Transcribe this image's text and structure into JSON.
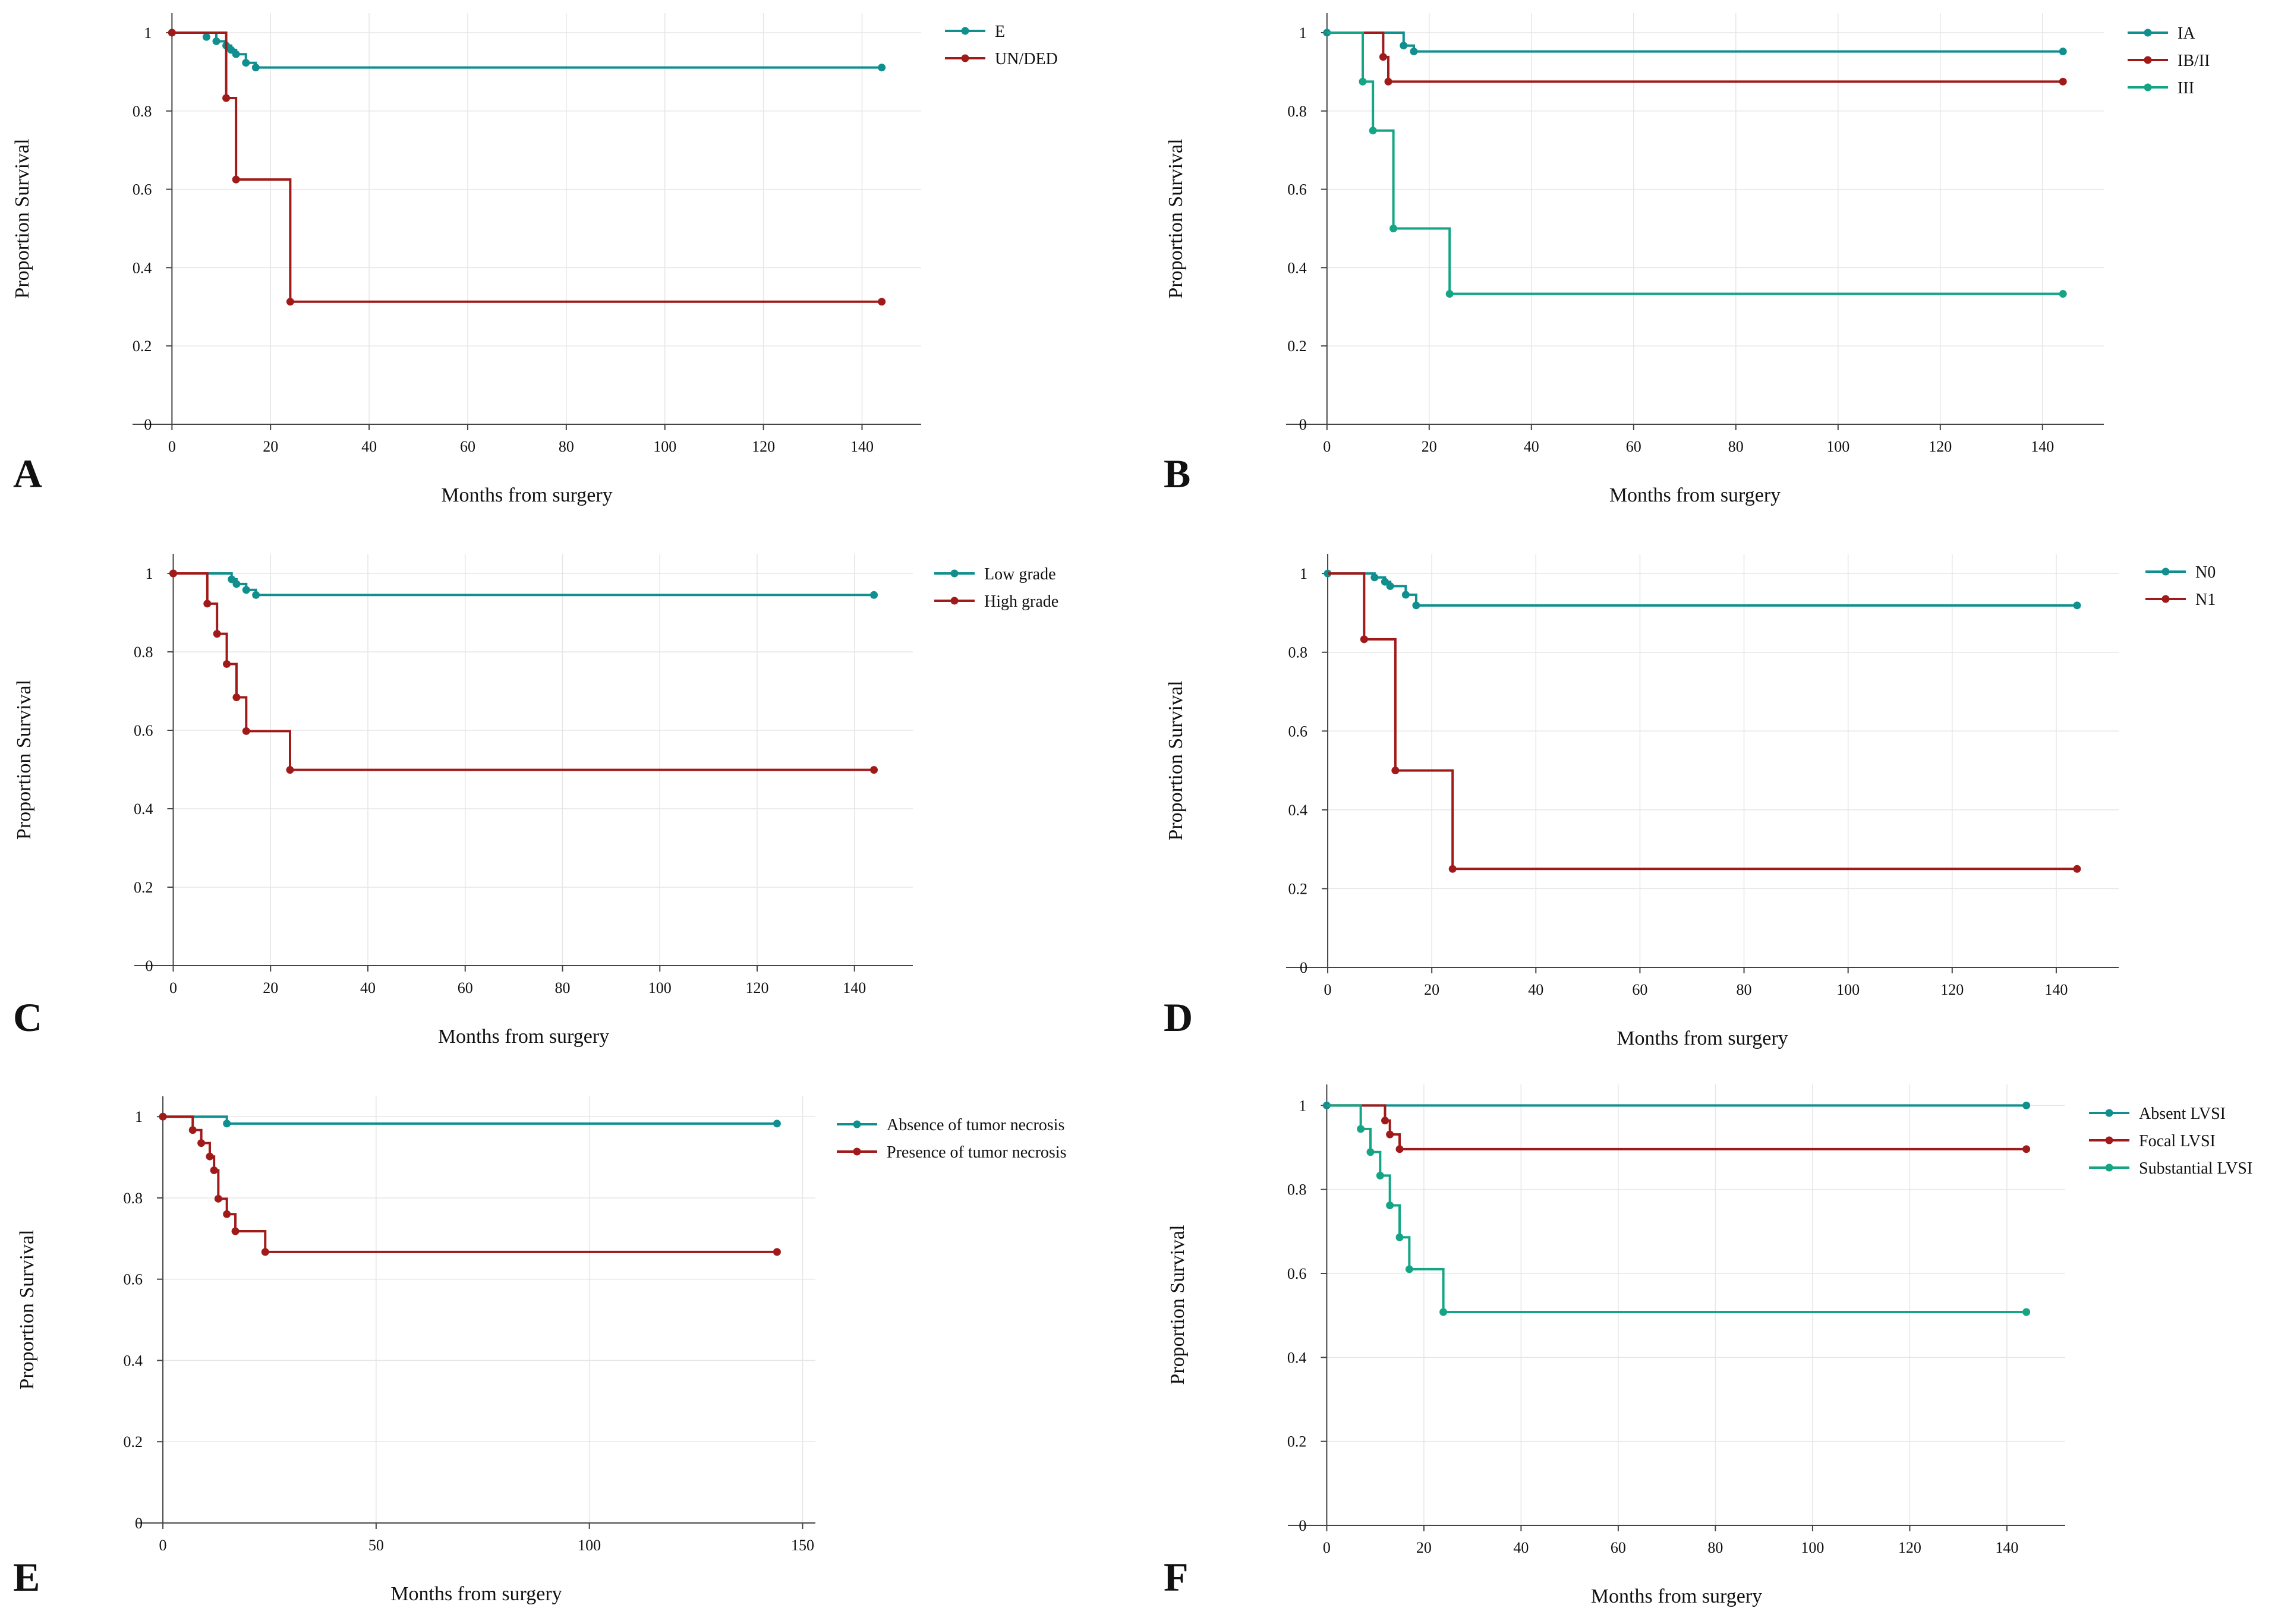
{
  "colors": {
    "teal": "#108f8f",
    "red": "#a11a1a",
    "green": "#15a585"
  },
  "chart_data": [
    {
      "type": "line",
      "panel_label": "A",
      "xlabel": "Months from surgery",
      "ylabel": "Proportion Survival",
      "xlim": [
        -8,
        152
      ],
      "xticks": [
        0,
        20,
        40,
        60,
        80,
        100,
        120,
        140
      ],
      "ylim": [
        0,
        1.05
      ],
      "yticks": [
        0,
        0.2,
        0.4,
        0.6,
        0.8,
        1
      ],
      "ytick_labels": [
        "0",
        "0.2",
        "0.4",
        "0.6",
        "0.8",
        "1"
      ],
      "legend": [
        "E",
        "UN/DED"
      ],
      "series": [
        {
          "name": "E",
          "color": "#108f8f",
          "steps": [
            [
              0,
              1
            ],
            [
              9,
              0.978
            ],
            [
              11,
              0.967
            ],
            [
              12,
              0.956
            ],
            [
              13,
              0.945
            ],
            [
              15,
              0.923
            ],
            [
              17,
              0.911
            ],
            [
              144,
              0.911
            ]
          ],
          "censored": [
            [
              0,
              1
            ],
            [
              7,
              0.989
            ],
            [
              9,
              0.978
            ],
            [
              11,
              0.967
            ],
            [
              12,
              0.956
            ],
            [
              13,
              0.945
            ],
            [
              15,
              0.923
            ],
            [
              17,
              0.911
            ],
            [
              144,
              0.911
            ]
          ]
        },
        {
          "name": "UN/DED",
          "color": "#a11a1a",
          "steps": [
            [
              0,
              1
            ],
            [
              11,
              0.833
            ],
            [
              13,
              0.625
            ],
            [
              24,
              0.313
            ],
            [
              144,
              0.313
            ]
          ],
          "censored": [
            [
              0,
              1
            ],
            [
              11,
              0.833
            ],
            [
              13,
              0.625
            ],
            [
              24,
              0.313
            ],
            [
              144,
              0.313
            ]
          ]
        }
      ]
    },
    {
      "type": "line",
      "panel_label": "B",
      "xlabel": "Months from surgery",
      "ylabel": "Proportion Survival",
      "xlim": [
        -8,
        152
      ],
      "xticks": [
        0,
        20,
        40,
        60,
        80,
        100,
        120,
        140
      ],
      "ylim": [
        0,
        1.05
      ],
      "yticks": [
        0,
        0.2,
        0.4,
        0.6,
        0.8,
        1
      ],
      "ytick_labels": [
        "0",
        "0.2",
        "0.4",
        "0.6",
        "0.8",
        "1"
      ],
      "legend": [
        "IA",
        "IB/II",
        "III"
      ],
      "series": [
        {
          "name": "IA",
          "color": "#108f8f",
          "steps": [
            [
              0,
              1
            ],
            [
              15,
              0.967
            ],
            [
              17,
              0.952
            ],
            [
              144,
              0.952
            ]
          ],
          "censored": [
            [
              0,
              1
            ],
            [
              15,
              0.967
            ],
            [
              17,
              0.952
            ],
            [
              144,
              0.952
            ]
          ]
        },
        {
          "name": "IB/II",
          "color": "#a11a1a",
          "steps": [
            [
              0,
              1
            ],
            [
              11,
              0.938
            ],
            [
              12,
              0.875
            ],
            [
              144,
              0.875
            ]
          ],
          "censored": [
            [
              11,
              0.938
            ],
            [
              12,
              0.875
            ],
            [
              144,
              0.875
            ]
          ]
        },
        {
          "name": "III",
          "color": "#15a585",
          "steps": [
            [
              0,
              1
            ],
            [
              7,
              0.875
            ],
            [
              9,
              0.75
            ],
            [
              13,
              0.5
            ],
            [
              24,
              0.333
            ],
            [
              144,
              0.333
            ]
          ],
          "censored": [
            [
              7,
              0.875
            ],
            [
              9,
              0.75
            ],
            [
              13,
              0.5
            ],
            [
              24,
              0.333
            ],
            [
              144,
              0.333
            ]
          ]
        }
      ]
    },
    {
      "type": "line",
      "panel_label": "C",
      "xlabel": "Months from surgery",
      "ylabel": "Proportion Survival",
      "xlim": [
        -8,
        152
      ],
      "xticks": [
        0,
        20,
        40,
        60,
        80,
        100,
        120,
        140
      ],
      "ylim": [
        0,
        1.05
      ],
      "yticks": [
        0,
        0.2,
        0.4,
        0.6,
        0.8,
        1
      ],
      "ytick_labels": [
        "0",
        "0.2",
        "0.4",
        "0.6",
        "0.8",
        "1"
      ],
      "legend": [
        "Low grade",
        "High grade"
      ],
      "series": [
        {
          "name": "Low grade",
          "color": "#108f8f",
          "steps": [
            [
              0,
              1
            ],
            [
              12,
              0.985
            ],
            [
              13,
              0.973
            ],
            [
              15,
              0.958
            ],
            [
              17,
              0.945
            ],
            [
              144,
              0.945
            ]
          ],
          "censored": [
            [
              0,
              1
            ],
            [
              12,
              0.985
            ],
            [
              13,
              0.973
            ],
            [
              15,
              0.958
            ],
            [
              17,
              0.945
            ],
            [
              144,
              0.945
            ]
          ]
        },
        {
          "name": "High grade",
          "color": "#a11a1a",
          "steps": [
            [
              0,
              1
            ],
            [
              7,
              0.923
            ],
            [
              9,
              0.846
            ],
            [
              11,
              0.769
            ],
            [
              13,
              0.684
            ],
            [
              15,
              0.598
            ],
            [
              24,
              0.499
            ],
            [
              144,
              0.499
            ]
          ],
          "censored": [
            [
              0,
              1
            ],
            [
              7,
              0.923
            ],
            [
              9,
              0.846
            ],
            [
              11,
              0.769
            ],
            [
              13,
              0.684
            ],
            [
              15,
              0.598
            ],
            [
              24,
              0.499
            ],
            [
              144,
              0.499
            ]
          ]
        }
      ]
    },
    {
      "type": "line",
      "panel_label": "D",
      "xlabel": "Months from surgery",
      "ylabel": "Proportion Survival",
      "xlim": [
        -8,
        152
      ],
      "xticks": [
        0,
        20,
        40,
        60,
        80,
        100,
        120,
        140
      ],
      "ylim": [
        0,
        1.05
      ],
      "yticks": [
        0,
        0.2,
        0.4,
        0.6,
        0.8,
        1
      ],
      "ytick_labels": [
        "0",
        "0.2",
        "0.4",
        "0.6",
        "0.8",
        "1"
      ],
      "legend": [
        "N0",
        "N1"
      ],
      "series": [
        {
          "name": "N0",
          "color": "#108f8f",
          "steps": [
            [
              0,
              1
            ],
            [
              9,
              0.99
            ],
            [
              11,
              0.979
            ],
            [
              12,
              0.968
            ],
            [
              15,
              0.946
            ],
            [
              17,
              0.919
            ],
            [
              144,
              0.919
            ]
          ],
          "censored": [
            [
              0,
              1
            ],
            [
              9,
              0.99
            ],
            [
              11,
              0.979
            ],
            [
              12,
              0.968
            ],
            [
              15,
              0.946
            ],
            [
              17,
              0.919
            ],
            [
              144,
              0.919
            ]
          ]
        },
        {
          "name": "N1",
          "color": "#a11a1a",
          "steps": [
            [
              0,
              1
            ],
            [
              7,
              0.833
            ],
            [
              13,
              0.5
            ],
            [
              24,
              0.25
            ],
            [
              144,
              0.25
            ]
          ],
          "censored": [
            [
              7,
              0.833
            ],
            [
              13,
              0.5
            ],
            [
              24,
              0.25
            ],
            [
              144,
              0.25
            ]
          ]
        }
      ]
    },
    {
      "type": "line",
      "panel_label": "E",
      "xlabel": "Months from surgery",
      "ylabel": "Proportion Survival",
      "xlim": [
        -6,
        153
      ],
      "xticks": [
        0,
        50,
        100,
        150
      ],
      "ylim": [
        0,
        1.05
      ],
      "yticks": [
        0,
        0.2,
        0.4,
        0.6,
        0.8,
        1
      ],
      "ytick_labels": [
        "0",
        "0.2",
        "0.4",
        "0.6",
        "0.8",
        "1"
      ],
      "legend": [
        "Absence of tumor necrosis",
        "Presence of tumor necrosis"
      ],
      "series": [
        {
          "name": "Absence of tumor necrosis",
          "color": "#108f8f",
          "steps": [
            [
              0,
              1
            ],
            [
              15,
              0.983
            ],
            [
              144,
              0.983
            ]
          ],
          "censored": [
            [
              0,
              1
            ],
            [
              15,
              0.983
            ],
            [
              144,
              0.983
            ]
          ]
        },
        {
          "name": "Presence of tumor necrosis",
          "color": "#a11a1a",
          "steps": [
            [
              0,
              1
            ],
            [
              7,
              0.967
            ],
            [
              9,
              0.935
            ],
            [
              11,
              0.902
            ],
            [
              12,
              0.868
            ],
            [
              13,
              0.798
            ],
            [
              15,
              0.76
            ],
            [
              17,
              0.718
            ],
            [
              24,
              0.667
            ],
            [
              144,
              0.667
            ]
          ],
          "censored": [
            [
              0,
              1
            ],
            [
              7,
              0.967
            ],
            [
              9,
              0.935
            ],
            [
              11,
              0.902
            ],
            [
              12,
              0.868
            ],
            [
              13,
              0.798
            ],
            [
              15,
              0.76
            ],
            [
              17,
              0.718
            ],
            [
              24,
              0.667
            ],
            [
              144,
              0.667
            ]
          ]
        }
      ]
    },
    {
      "type": "line",
      "panel_label": "F",
      "xlabel": "Months from surgery",
      "ylabel": "Proportion Survival",
      "xlim": [
        -8,
        152
      ],
      "xticks": [
        0,
        20,
        40,
        60,
        80,
        100,
        120,
        140
      ],
      "ylim": [
        0,
        1.05
      ],
      "yticks": [
        0,
        0.2,
        0.4,
        0.6,
        0.8,
        1
      ],
      "ytick_labels": [
        "0",
        "0.2",
        "0.4",
        "0.6",
        "0.8",
        "1"
      ],
      "legend": [
        "Absent LVSI",
        "Focal LVSI",
        "Substantial LVSI"
      ],
      "series": [
        {
          "name": "Absent LVSI",
          "color": "#108f8f",
          "steps": [
            [
              0,
              1
            ],
            [
              144,
              1
            ]
          ],
          "censored": [
            [
              0,
              1
            ],
            [
              144,
              1
            ]
          ]
        },
        {
          "name": "Focal LVSI",
          "color": "#a11a1a",
          "steps": [
            [
              0,
              1
            ],
            [
              12,
              0.964
            ],
            [
              13,
              0.931
            ],
            [
              15,
              0.896
            ],
            [
              144,
              0.896
            ]
          ],
          "censored": [
            [
              12,
              0.964
            ],
            [
              13,
              0.931
            ],
            [
              15,
              0.896
            ],
            [
              144,
              0.896
            ]
          ]
        },
        {
          "name": "Substantial LVSI",
          "color": "#15a585",
          "steps": [
            [
              0,
              1
            ],
            [
              7,
              0.944
            ],
            [
              9,
              0.889
            ],
            [
              11,
              0.833
            ],
            [
              13,
              0.762
            ],
            [
              15,
              0.686
            ],
            [
              17,
              0.61
            ],
            [
              24,
              0.508
            ],
            [
              144,
              0.508
            ]
          ],
          "censored": [
            [
              7,
              0.944
            ],
            [
              9,
              0.889
            ],
            [
              11,
              0.833
            ],
            [
              13,
              0.762
            ],
            [
              15,
              0.686
            ],
            [
              17,
              0.61
            ],
            [
              24,
              0.508
            ],
            [
              144,
              0.508
            ]
          ]
        }
      ]
    }
  ]
}
